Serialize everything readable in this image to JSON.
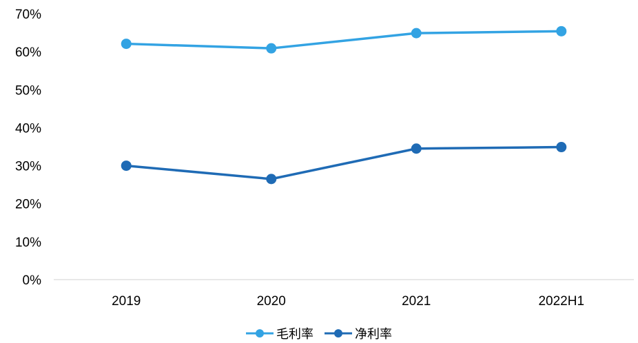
{
  "chart_data": {
    "type": "line",
    "categories": [
      "2019",
      "2020",
      "2021",
      "2022H1"
    ],
    "series": [
      {
        "name": "毛利率",
        "values": [
          62.1,
          60.9,
          64.9,
          65.4
        ],
        "color": "#33a3e3"
      },
      {
        "name": "净利率",
        "values": [
          30.0,
          26.5,
          34.5,
          34.9
        ],
        "color": "#1f6bb5"
      }
    ],
    "ylim": [
      0,
      70
    ],
    "yticks": [
      "0%",
      "10%",
      "20%",
      "30%",
      "40%",
      "50%",
      "60%",
      "70%"
    ],
    "ytick_values": [
      0,
      10,
      20,
      30,
      40,
      50,
      60,
      70
    ],
    "grid": false,
    "legend_position": "bottom"
  }
}
